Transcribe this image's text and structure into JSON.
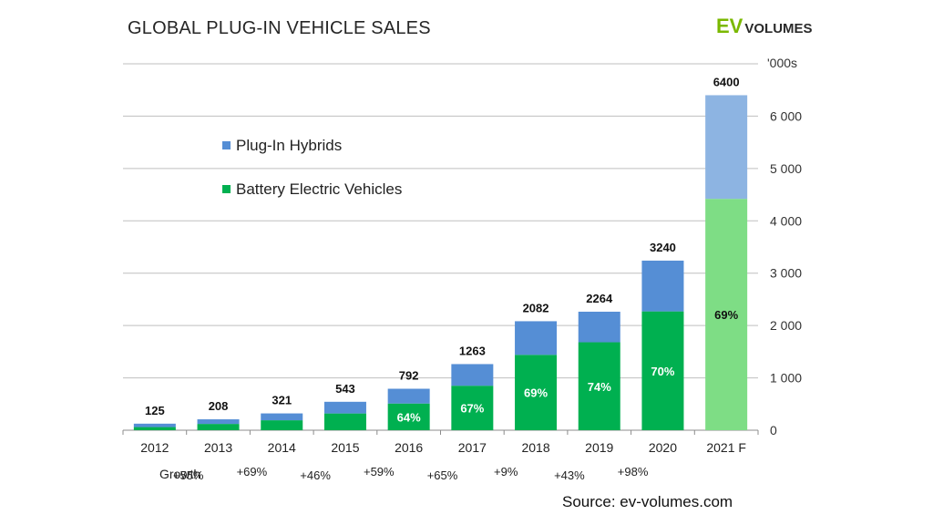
{
  "title": "GLOBAL PLUG-IN VEHICLE SALES",
  "logo": {
    "ev": "EV",
    "volumes": "VOLUMES"
  },
  "unit_label": "'000s",
  "source": "Source: ev-volumes.com",
  "growth_label": "Growth",
  "colors": {
    "phev": "#558ed5",
    "bev": "#00b050",
    "phev_forecast": "#8db4e2",
    "bev_forecast": "#7edd85"
  },
  "chart_data": {
    "type": "bar",
    "stacked": true,
    "categories": [
      "2012",
      "2013",
      "2014",
      "2015",
      "2016",
      "2017",
      "2018",
      "2019",
      "2020",
      "2021 F"
    ],
    "series": [
      {
        "name": "Battery Electric Vehicles",
        "values": [
          60,
          120,
          190,
          320,
          510,
          850,
          1440,
          1680,
          2270,
          4420
        ]
      },
      {
        "name": "Plug-In Hybrids",
        "values": [
          65,
          88,
          131,
          223,
          282,
          413,
          642,
          584,
          970,
          1980
        ]
      }
    ],
    "totals": [
      125,
      208,
      321,
      543,
      792,
      1263,
      2082,
      2264,
      3240,
      6400
    ],
    "bev_share_labels": [
      "",
      "",
      "",
      "",
      "64%",
      "67%",
      "69%",
      "74%",
      "70%",
      "69%"
    ],
    "growth": [
      "+55%",
      "+69%",
      "+46%",
      "+59%",
      "+65%",
      "+9%",
      "+43%",
      "+98%"
    ],
    "yticks": [
      "0",
      "1 000",
      "2 000",
      "3 000",
      "4 000",
      "5 000",
      "6 000"
    ],
    "ylim": [
      0,
      7000
    ],
    "grid": true,
    "legend_position": "top-left"
  }
}
